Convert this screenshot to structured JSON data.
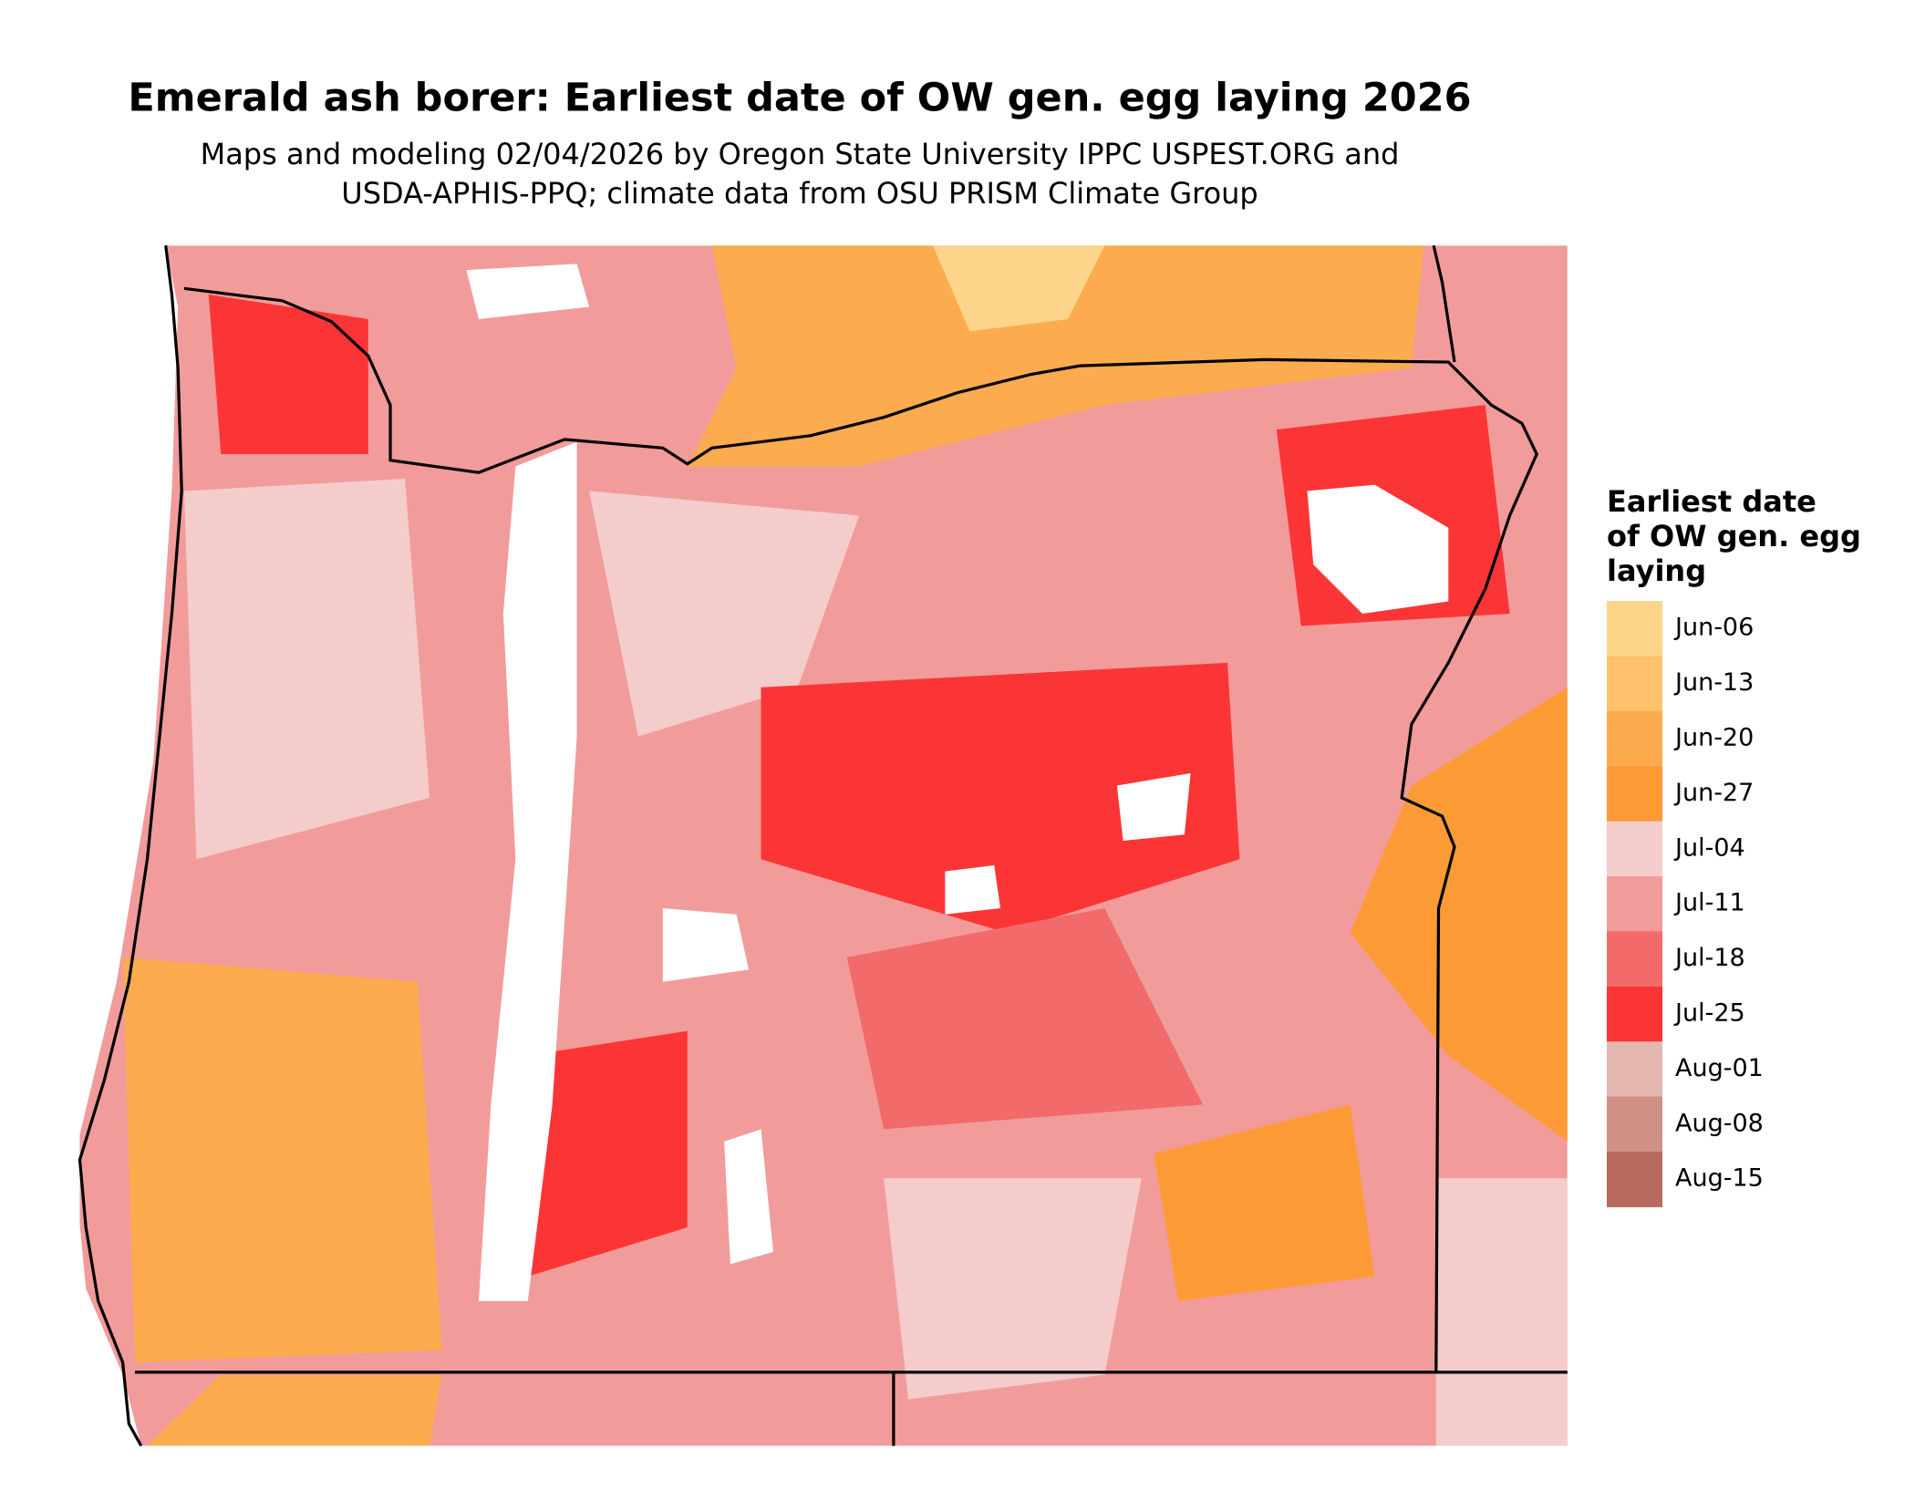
{
  "header": {
    "title": "Emerald ash borer: Earliest date of OW gen. egg laying 2026",
    "subtitle": [
      "Maps and modeling 02/04/2026 by Oregon State University IPPC USPEST.ORG and",
      "USDA-APHIS-PPQ; climate data from OSU PRISM Climate Group"
    ]
  },
  "legend": {
    "title": [
      "Earliest date",
      "of OW gen. egg",
      "laying"
    ],
    "items": [
      {
        "label": "Jun-06",
        "color": "#fdd58a"
      },
      {
        "label": "Jun-13",
        "color": "#fdc26b"
      },
      {
        "label": "Jun-20",
        "color": "#fcab4f"
      },
      {
        "label": "Jun-27",
        "color": "#fc9b36"
      },
      {
        "label": "Jul-04",
        "color": "#f4cccc"
      },
      {
        "label": "Jul-11",
        "color": "#f29b9b"
      },
      {
        "label": "Jul-18",
        "color": "#f26a6a"
      },
      {
        "label": "Jul-25",
        "color": "#fb3535"
      },
      {
        "label": "Aug-01",
        "color": "#e4b8b0"
      },
      {
        "label": "Aug-08",
        "color": "#cf9184"
      },
      {
        "label": "Aug-15",
        "color": "#b96a5f"
      }
    ]
  }
}
